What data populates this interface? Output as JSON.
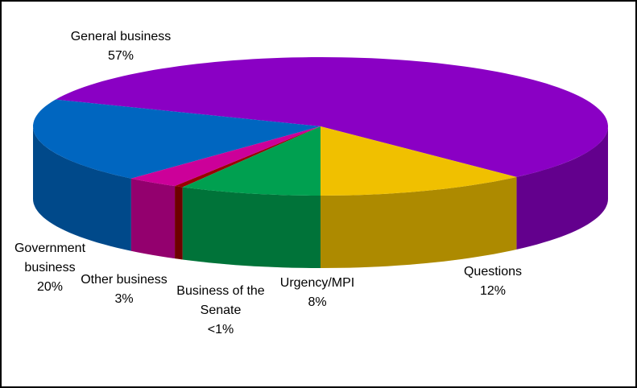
{
  "chart_data": {
    "type": "pie3d",
    "categories": [
      "General business",
      "Government business",
      "Other business",
      "Business of the Senate",
      "Urgency/MPI",
      "Questions"
    ],
    "values": [
      57,
      20,
      3,
      0.5,
      8,
      12
    ],
    "value_labels": [
      "57%",
      "20%",
      "3%",
      "<1%",
      "8%",
      "12%"
    ],
    "colors": [
      "#8a00c4",
      "#0066c0",
      "#cc0099",
      "#990000",
      "#00a050",
      "#f0c000"
    ]
  }
}
